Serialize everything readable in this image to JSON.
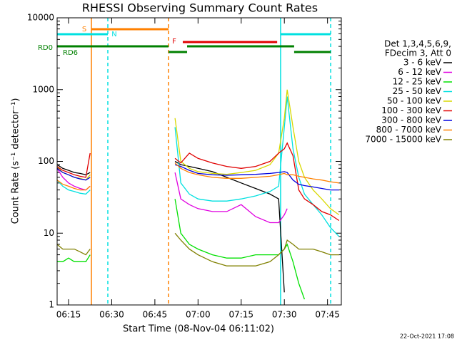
{
  "chart_data": {
    "type": "line",
    "title": "RHESSI Observing Summary Count Rates",
    "xlabel": "Start Time (08-Nov-04 06:11:02)",
    "ylabel": "Count Rate (s⁻¹ detector⁻¹)",
    "footer": "22-Oct-2021 17:08",
    "legend_header": [
      "Det 1,3,4,5,6,9,",
      "FDecim 3, Att 0"
    ],
    "log_y": true,
    "xlim": [
      11.03,
      109.8
    ],
    "ylim": [
      1,
      10000
    ],
    "xticks": [
      {
        "value": 15,
        "label": "06:15"
      },
      {
        "value": 30,
        "label": "06:30"
      },
      {
        "value": 45,
        "label": "06:45"
      },
      {
        "value": 60,
        "label": "07:00"
      },
      {
        "value": 75,
        "label": "07:15"
      },
      {
        "value": 90,
        "label": "07:30"
      },
      {
        "value": 105,
        "label": "07:45"
      }
    ],
    "yticks": [
      1,
      10,
      100,
      1000,
      10000
    ],
    "x": [
      11,
      13,
      15,
      17,
      19,
      21,
      22.5,
      30,
      52,
      54,
      57,
      60,
      65,
      70,
      75,
      80,
      85,
      88,
      90,
      91,
      93,
      95,
      97,
      100,
      103,
      106,
      109
    ],
    "series": [
      {
        "name": "3 - 6 keV",
        "color": "#000000",
        "values": [
          90,
          80,
          75,
          70,
          68,
          65,
          70,
          null,
          100,
          90,
          85,
          80,
          72,
          60,
          50,
          42,
          35,
          30,
          1.5,
          null,
          null,
          null,
          null,
          null,
          null,
          null,
          null
        ]
      },
      {
        "name": "6 - 12 keV",
        "color": "#e000e0",
        "values": [
          80,
          60,
          50,
          45,
          42,
          40,
          45,
          null,
          70,
          30,
          25,
          22,
          20,
          20,
          25,
          17,
          14,
          14,
          18,
          22,
          null,
          null,
          null,
          null,
          null,
          null,
          null
        ]
      },
      {
        "name": "12 - 25 keV",
        "color": "#00e000",
        "values": [
          4,
          4,
          4.5,
          4,
          4,
          4,
          5,
          null,
          30,
          10,
          7,
          6,
          5,
          4.5,
          4.5,
          5,
          5,
          5,
          6,
          7,
          4,
          2,
          1.2,
          null,
          null,
          null,
          null
        ]
      },
      {
        "name": "25 - 50 keV",
        "color": "#00e0e0",
        "values": [
          55,
          45,
          40,
          38,
          36,
          35,
          40,
          null,
          300,
          50,
          35,
          30,
          28,
          28,
          30,
          33,
          38,
          45,
          300,
          800,
          150,
          60,
          35,
          25,
          18,
          12,
          9
        ]
      },
      {
        "name": "50 - 100 keV",
        "color": "#d8d800",
        "values": [
          85,
          70,
          65,
          60,
          58,
          55,
          65,
          null,
          400,
          100,
          80,
          72,
          68,
          66,
          70,
          75,
          90,
          130,
          400,
          1000,
          300,
          100,
          60,
          40,
          30,
          22,
          18
        ]
      },
      {
        "name": "100 - 300 keV",
        "color": "#e00000",
        "values": [
          85,
          75,
          70,
          65,
          62,
          60,
          130,
          null,
          110,
          95,
          130,
          110,
          95,
          85,
          80,
          85,
          100,
          130,
          150,
          180,
          120,
          40,
          30,
          25,
          20,
          18,
          15
        ]
      },
      {
        "name": "300 - 800 keV",
        "color": "#0000e0",
        "values": [
          80,
          70,
          65,
          60,
          57,
          55,
          60,
          null,
          90,
          85,
          75,
          68,
          65,
          64,
          65,
          66,
          68,
          70,
          72,
          70,
          55,
          48,
          46,
          44,
          42,
          40,
          40
        ]
      },
      {
        "name": "800 - 7000 keV",
        "color": "#ff8000",
        "values": [
          55,
          48,
          45,
          42,
          40,
          40,
          45,
          null,
          95,
          80,
          70,
          65,
          60,
          58,
          58,
          60,
          62,
          65,
          68,
          65,
          65,
          62,
          60,
          57,
          55,
          52,
          50
        ]
      },
      {
        "name": "7000 - 15000 keV",
        "color": "#808000",
        "values": [
          7,
          6,
          6,
          6,
          5.5,
          5,
          6,
          null,
          10,
          8,
          6,
          5,
          4,
          3.5,
          3.5,
          3.5,
          4,
          5,
          6,
          8,
          7,
          6,
          6,
          6,
          5.5,
          5,
          5
        ]
      }
    ],
    "flags": [
      {
        "label": "S",
        "color": "#ff8000",
        "segments": [
          [
            22.94,
            49.74
          ]
        ]
      },
      {
        "label": "N",
        "color": "#00e0e0",
        "segments": [
          [
            11.03,
            28.65
          ],
          [
            88.7,
            106.1
          ]
        ]
      },
      {
        "label": "F",
        "color": "#e00000",
        "segments": [
          [
            54.7,
            87.5
          ]
        ]
      },
      {
        "label": "RD0",
        "color": "#008000",
        "segments": [
          [
            11.03,
            49.74
          ],
          [
            56.2,
            93.4
          ]
        ]
      },
      {
        "label": "RD6",
        "color": "#008000",
        "segments": [
          [
            49.74,
            56.2
          ],
          [
            93.4,
            106.1
          ]
        ]
      }
    ],
    "vlines": [
      {
        "x": 22.94,
        "color": "#ff8000",
        "dashed": false
      },
      {
        "x": 28.65,
        "color": "#00e0e0",
        "dashed": true
      },
      {
        "x": 49.74,
        "color": "#ff8000",
        "dashed": true
      },
      {
        "x": 88.7,
        "color": "#00e0e0",
        "dashed": false
      },
      {
        "x": 106.1,
        "color": "#00e0e0",
        "dashed": true
      }
    ]
  }
}
